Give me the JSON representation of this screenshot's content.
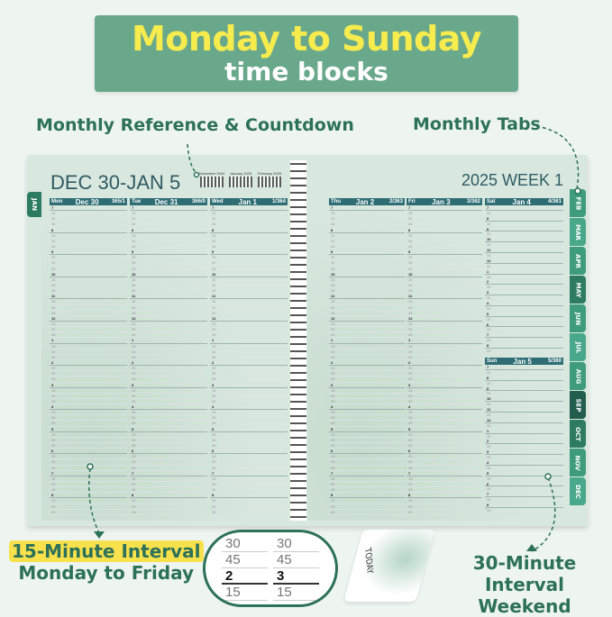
{
  "banner": {
    "line1": "Monday to Sunday",
    "line2": "time blocks"
  },
  "callouts": {
    "monthly_reference": "Monthly Reference & Countdown",
    "monthly_tabs": "Monthly Tabs",
    "interval15_line1": "15-Minute Interval",
    "interval15_line2": "Monday to Friday",
    "interval30_line1": "30-Minute Interval",
    "interval30_line2": "Weekend"
  },
  "colors": {
    "banner": "#6aa88c",
    "title_yellow": "#f7ec4d",
    "callout_green": "#2d7158",
    "day_header": "#2f6d75",
    "highlight": "#f7e14c"
  },
  "left_page": {
    "title": "DEC 30-JAN 5",
    "mini_calendars": [
      "December 2024",
      "January 2025",
      "February 2025"
    ],
    "tab": "JAN",
    "days": [
      {
        "dow": "Mon",
        "date": "Dec  30",
        "count": "365/1"
      },
      {
        "dow": "Tue",
        "date": "Dec  31",
        "count": "366/0"
      },
      {
        "dow": "Wed",
        "date": "Jan  1",
        "count": "1/364"
      }
    ]
  },
  "right_page": {
    "title": "2025 WEEK 1",
    "days": [
      {
        "dow": "Thu",
        "date": "Jan  2",
        "count": "2/363"
      },
      {
        "dow": "Fri",
        "date": "Jan  3",
        "count": "3/362"
      },
      {
        "dow": "Sat",
        "date": "Jan  4",
        "count": "4/361"
      },
      {
        "dow": "Sun",
        "date": "Jan  5",
        "count": "5/360"
      }
    ],
    "tabs": [
      "FEB",
      "MAR",
      "APR",
      "MAY",
      "JUN",
      "JUL",
      "AUG",
      "SEP",
      "OCT",
      "NOV",
      "DEC"
    ]
  },
  "hours": [
    "7",
    "8",
    "9",
    "10",
    "11",
    "12",
    "1",
    "2",
    "3",
    "4",
    "5",
    "6",
    "7",
    "8"
  ],
  "weekday_minutes": [
    "15",
    "30",
    "45"
  ],
  "weekend_minutes": [
    "30"
  ],
  "magnifier": [
    "30",
    "45",
    "2",
    "15",
    "30",
    "45",
    "3",
    "15"
  ],
  "bookmark": {
    "label": "TODAY"
  }
}
